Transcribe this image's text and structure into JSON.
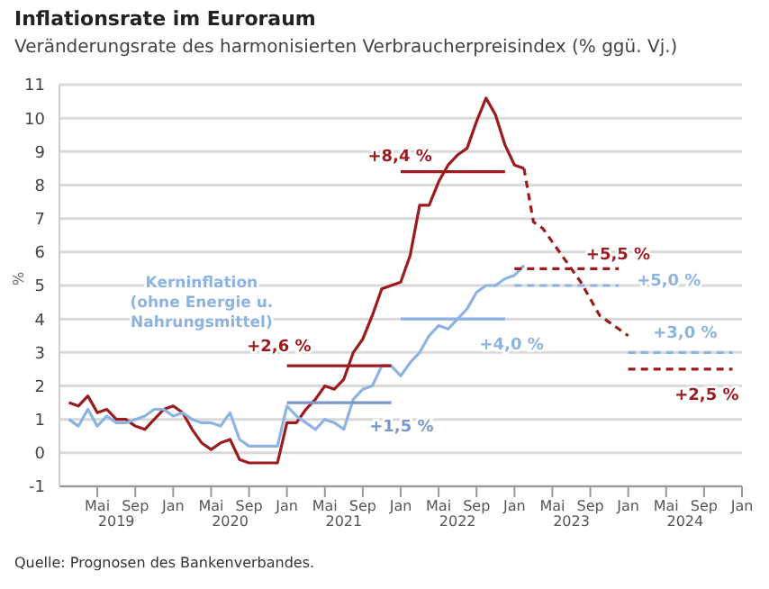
{
  "chart_data": {
    "type": "line",
    "title": "Inflationsrate im Euroraum",
    "subtitle": "Veränderungsrate des harmonisierten Verbraucherpreisindex (% ggü. Vj.)",
    "ylabel": "%",
    "xlim": [
      "2019-01",
      "2025-01"
    ],
    "ylim": [
      -1,
      11
    ],
    "yticks": [
      -1,
      0,
      1,
      2,
      3,
      4,
      5,
      6,
      7,
      8,
      9,
      10,
      11
    ],
    "xticks": [
      {
        "value": "2019-05",
        "label": "Mai"
      },
      {
        "value": "2019-09",
        "label": "Sep"
      },
      {
        "value": "2020-01",
        "label": "Jan"
      },
      {
        "value": "2020-05",
        "label": "Mai"
      },
      {
        "value": "2020-09",
        "label": "Sep"
      },
      {
        "value": "2021-01",
        "label": "Jan"
      },
      {
        "value": "2021-05",
        "label": "Mai"
      },
      {
        "value": "2021-09",
        "label": "Sep"
      },
      {
        "value": "2022-01",
        "label": "Jan"
      },
      {
        "value": "2022-05",
        "label": "Mai"
      },
      {
        "value": "2022-09",
        "label": "Sep"
      },
      {
        "value": "2023-01",
        "label": "Jan"
      },
      {
        "value": "2023-05",
        "label": "Mai"
      },
      {
        "value": "2023-09",
        "label": "Sep"
      },
      {
        "value": "2024-01",
        "label": "Jan"
      },
      {
        "value": "2024-05",
        "label": "Mai"
      },
      {
        "value": "2024-09",
        "label": "Sep"
      },
      {
        "value": "2025-01",
        "label": "Jan"
      }
    ],
    "grid": "y",
    "series": [
      {
        "color": "#9b1b1e",
        "x": [
          "2019-02",
          "2019-03",
          "2019-04",
          "2019-05",
          "2019-06",
          "2019-07",
          "2019-08",
          "2019-09",
          "2019-10",
          "2019-11",
          "2019-12",
          "2020-01",
          "2020-02",
          "2020-03",
          "2020-04",
          "2020-05",
          "2020-06",
          "2020-07",
          "2020-08",
          "2020-09",
          "2020-10",
          "2020-11",
          "2020-12",
          "2021-01",
          "2021-02",
          "2021-03",
          "2021-04",
          "2021-05",
          "2021-06",
          "2021-07",
          "2021-08",
          "2021-09",
          "2021-10",
          "2021-11",
          "2021-12",
          "2022-01",
          "2022-02",
          "2022-03",
          "2022-04",
          "2022-05",
          "2022-06",
          "2022-07",
          "2022-08",
          "2022-09",
          "2022-10",
          "2022-11",
          "2022-12",
          "2023-01",
          "2023-02"
        ],
        "values": [
          1.5,
          1.4,
          1.7,
          1.2,
          1.3,
          1.0,
          1.0,
          0.8,
          0.7,
          1.0,
          1.3,
          1.4,
          1.2,
          0.7,
          0.3,
          0.1,
          0.3,
          0.4,
          -0.2,
          -0.3,
          -0.3,
          -0.3,
          -0.3,
          0.9,
          0.9,
          1.3,
          1.6,
          2.0,
          1.9,
          2.2,
          3.0,
          3.4,
          4.1,
          4.9,
          5.0,
          5.1,
          5.9,
          7.4,
          7.4,
          8.1,
          8.6,
          8.9,
          9.1,
          9.9,
          10.6,
          10.1,
          9.2,
          8.6,
          8.5
        ]
      },
      {
        "name": "Kerninflation (ohne Energie u. Nahrungsmittel)",
        "color": "#8db3e2",
        "x": [
          "2019-02",
          "2019-03",
          "2019-04",
          "2019-05",
          "2019-06",
          "2019-07",
          "2019-08",
          "2019-09",
          "2019-10",
          "2019-11",
          "2019-12",
          "2020-01",
          "2020-02",
          "2020-03",
          "2020-04",
          "2020-05",
          "2020-06",
          "2020-07",
          "2020-08",
          "2020-09",
          "2020-10",
          "2020-11",
          "2020-12",
          "2021-01",
          "2021-02",
          "2021-03",
          "2021-04",
          "2021-05",
          "2021-06",
          "2021-07",
          "2021-08",
          "2021-09",
          "2021-10",
          "2021-11",
          "2021-12",
          "2022-01",
          "2022-02",
          "2022-03",
          "2022-04",
          "2022-05",
          "2022-06",
          "2022-07",
          "2022-08",
          "2022-09",
          "2022-10",
          "2022-11",
          "2022-12",
          "2023-01",
          "2023-02"
        ],
        "values": [
          1.0,
          0.8,
          1.3,
          0.8,
          1.1,
          0.9,
          0.9,
          1.0,
          1.1,
          1.3,
          1.3,
          1.1,
          1.2,
          1.0,
          0.9,
          0.9,
          0.8,
          1.2,
          0.4,
          0.2,
          0.2,
          0.2,
          0.2,
          1.4,
          1.1,
          0.9,
          0.7,
          1.0,
          0.9,
          0.7,
          1.6,
          1.9,
          2.0,
          2.6,
          2.6,
          2.3,
          2.7,
          3.0,
          3.5,
          3.8,
          3.7,
          4.0,
          4.3,
          4.8,
          5.0,
          5.0,
          5.2,
          5.3,
          5.6
        ]
      },
      {
        "color": "#9b1b1e",
        "line_style": "dashed",
        "x": [
          "2023-02",
          "2023-03",
          "2023-04",
          "2023-05",
          "2023-06",
          "2023-07",
          "2023-08",
          "2023-09",
          "2023-10",
          "2023-11",
          "2023-12",
          "2024-01"
        ],
        "values": [
          8.5,
          6.9,
          6.7,
          6.3,
          5.9,
          5.5,
          5.1,
          4.6,
          4.1,
          3.9,
          3.7,
          3.5
        ]
      },
      {
        "color": "#9b1b1e",
        "x": [
          "2022-01",
          "2022-12"
        ],
        "values": [
          8.4,
          8.4
        ]
      },
      {
        "color": "#9b1b1e",
        "x": [
          "2021-01",
          "2021-12"
        ],
        "values": [
          2.6,
          2.6
        ]
      },
      {
        "color": "#9b1b1e",
        "line_style": "dashed",
        "x": [
          "2023-01",
          "2023-12"
        ],
        "values": [
          5.5,
          5.5
        ]
      },
      {
        "color": "#9b1b1e",
        "line_style": "dashed",
        "x": [
          "2024-01",
          "2024-12"
        ],
        "values": [
          2.5,
          2.5
        ]
      },
      {
        "color": "#7b96c8",
        "x": [
          "2021-01",
          "2021-12"
        ],
        "values": [
          1.5,
          1.5
        ]
      },
      {
        "color": "#8db3e2",
        "x": [
          "2022-01",
          "2022-12"
        ],
        "values": [
          4.0,
          4.0
        ]
      },
      {
        "color": "#8db3e2",
        "line_style": "dashed",
        "x": [
          "2023-01",
          "2023-12"
        ],
        "values": [
          5.0,
          5.0
        ]
      },
      {
        "color": "#8db3e2",
        "line_style": "dashed",
        "x": [
          "2024-01",
          "2024-12"
        ],
        "values": [
          3.0,
          3.0
        ]
      }
    ],
    "annotations": [
      {
        "text": "+8,4 %",
        "x": "2022-07",
        "y": 8.4
      },
      {
        "text": "+2,6 %",
        "x": "2021-07",
        "y": 2.6
      },
      {
        "text": "+5,5 %",
        "x": "2023-07",
        "y": 5.5
      },
      {
        "text": "+2,5 %",
        "x": "2024-07",
        "y": 2.5
      },
      {
        "text": "+1,5 %",
        "x": "2021-07",
        "y": 1.5
      },
      {
        "text": "+4,0 %",
        "x": "2022-07",
        "y": 4.0
      },
      {
        "text": "+5,0 %",
        "x": "2023-12",
        "y": 5.0
      },
      {
        "text": "+3,0 %",
        "x": "2024-07",
        "y": 3.0
      },
      "2019",
      "2020",
      "2021",
      "2022",
      "2023",
      "2024",
      "Quelle: Prognosen des Bankenverbandes."
    ]
  }
}
